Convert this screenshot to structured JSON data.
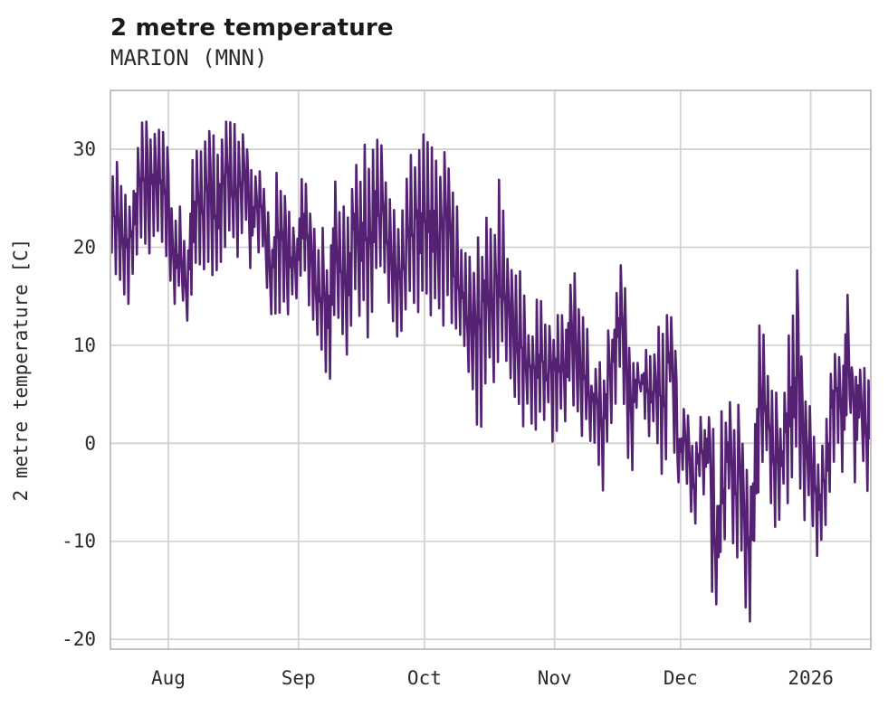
{
  "header": {
    "title": "2 metre temperature",
    "subtitle": "MARION (MNN)"
  },
  "chart_data": {
    "type": "line",
    "title": "2 metre temperature",
    "subtitle": "MARION (MNN)",
    "ylabel": "2 metre temperature [C]",
    "xlabel": "",
    "legend": "none",
    "grid": true,
    "background": "#ffffff",
    "grid_color": "#d2d2d2",
    "frame_color": "#c2c2c2",
    "line_color": "#542173",
    "text_color": "#2b2b2b",
    "ylim": [
      -21,
      36
    ],
    "yticks": [
      30,
      20,
      10,
      0,
      -10,
      -20
    ],
    "xticks": [
      "Aug",
      "Sep",
      "Oct",
      "Nov",
      "Dec",
      "2026"
    ],
    "xtick_day_offsets": [
      14,
      45,
      75,
      106,
      136,
      167
    ],
    "x_span_days": 181,
    "sampling": "daily min/max envelope of sub-daily temperature trace, first sample mid-July",
    "daily_min": [
      19,
      17,
      16.6,
      15,
      13.6,
      17,
      19,
      21,
      20,
      18.7,
      20.9,
      21.5,
      20,
      19,
      16.3,
      14,
      15.6,
      14.5,
      12.2,
      15,
      18,
      18.2,
      17.5,
      18,
      17,
      17.2,
      18,
      20,
      21,
      20.5,
      19,
      21.2,
      22.8,
      17.3,
      22,
      19.4,
      20,
      15.7,
      12.9,
      13,
      12.6,
      14,
      12.6,
      15,
      14.5,
      16.9,
      17.5,
      14,
      12.6,
      10.8,
      8.9,
      7,
      6.5,
      13,
      12.6,
      10.8,
      8.6,
      12,
      15.7,
      13,
      14.5,
      10.8,
      13,
      17.8,
      18,
      16.9,
      14,
      12,
      10.8,
      11.1,
      13.2,
      15,
      14,
      12.6,
      15,
      15,
      12.6,
      14,
      13,
      12,
      14.6,
      12,
      11.1,
      10.8,
      9.4,
      6.7,
      4.9,
      1,
      0.6,
      5.8,
      8,
      6,
      8,
      10,
      8.3,
      6,
      4.6,
      3.7,
      1.6,
      4,
      2,
      0.9,
      2.6,
      1.8,
      3.7,
      0,
      0.6,
      3.5,
      2,
      6.1,
      3.7,
      2.6,
      0.2,
      2,
      0,
      -0.3,
      -2.5,
      -5.3,
      -0.3,
      1.8,
      3.7,
      7.4,
      3.7,
      -1.6,
      -3.4,
      3.4,
      5.3,
      2.2,
      0.6,
      2,
      -0.3,
      -4,
      -2,
      6.2,
      -1.2,
      -4,
      -3,
      -4.3,
      -7.4,
      -8.3,
      -3.4,
      -5.5,
      -2,
      -16,
      -16.6,
      -12,
      -10.4,
      -4.9,
      -10.4,
      -12.2,
      -11.3,
      -17.2,
      -18.3,
      -10,
      -6,
      -2,
      -1,
      -6.5,
      -9.2,
      -8,
      -4.3,
      -6.7,
      -4,
      -1,
      -5.3,
      -8,
      -5.8,
      -9,
      -11.8,
      -10,
      -8.4,
      -5,
      -2,
      0,
      -3,
      2.5,
      3,
      -4,
      2.5,
      -2,
      -5.5
    ],
    "daily_max": [
      27.5,
      28.9,
      26.5,
      25.8,
      24.5,
      26,
      30.4,
      32.9,
      33.2,
      31,
      31.9,
      32.5,
      32,
      30.5,
      24,
      22.8,
      24.4,
      21,
      20,
      29.3,
      30.2,
      30,
      31,
      32.4,
      31.5,
      30,
      31.4,
      33.2,
      33.4,
      33,
      31.5,
      31.8,
      30,
      28,
      27.5,
      27.9,
      26.1,
      24,
      20,
      27.7,
      26.5,
      25.5,
      23.7,
      22,
      21.2,
      27,
      26.5,
      24,
      22,
      20,
      22.1,
      18,
      21,
      27,
      24,
      24.9,
      23.4,
      26,
      28.6,
      27,
      30.9,
      29,
      30,
      31.4,
      30.4,
      27,
      25,
      24.4,
      21.9,
      24,
      27.5,
      29.7,
      28.5,
      30,
      31.6,
      31.5,
      30.6,
      29,
      28,
      30,
      28.8,
      26,
      24.7,
      20.3,
      19.4,
      19.4,
      17.5,
      21.2,
      20,
      23.1,
      21.9,
      22,
      27.4,
      24,
      19.4,
      18,
      17.5,
      17.8,
      15.7,
      11.1,
      11,
      15.5,
      14.6,
      12.3,
      12,
      11.1,
      13.7,
      13.1,
      12,
      16.8,
      17.7,
      14.1,
      13.4,
      12,
      6.1,
      8,
      8.5,
      6.4,
      12,
      11.1,
      15.7,
      18.5,
      16,
      10.2,
      8.5,
      8.2,
      7,
      9.8,
      9.2,
      9.5,
      12.6,
      11.6,
      13.4,
      12.9,
      9.5,
      0.6,
      3.9,
      3,
      0,
      0.5,
      2.8,
      1.6,
      2.8,
      2,
      -6,
      3.7,
      2.4,
      4.2,
      1.7,
      4,
      0,
      -2,
      -4,
      2,
      12.2,
      11.1,
      6.9,
      5.5,
      5.3,
      1.8,
      5.4,
      11.3,
      13.1,
      18.3,
      9,
      5,
      4,
      1,
      -2,
      0,
      3,
      7.1,
      9.7,
      9,
      8.5,
      15.4,
      8,
      7.4,
      7.6,
      8,
      6.5
    ]
  }
}
